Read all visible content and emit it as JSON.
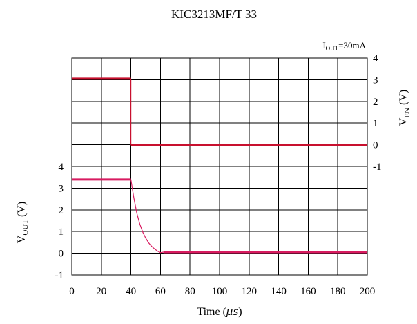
{
  "chart_data": {
    "type": "line",
    "title": "KIC3213MF/T 33",
    "condition": {
      "label": "I",
      "sub": "OUT",
      "value": "=30mA"
    },
    "xlabel": "Time (μs)",
    "xlabel_text": "Time (",
    "xlabel_unit": "μs",
    "xlabel_close": ")",
    "xlim": [
      0,
      200
    ],
    "x_ticks": [
      "0",
      "20",
      "40",
      "60",
      "80",
      "100",
      "120",
      "140",
      "160",
      "180",
      "200"
    ],
    "left_axis": {
      "label": "V",
      "label_sub": "OUT",
      "label_unit": " (V)",
      "ticks": [
        "4",
        "3",
        "2",
        "1",
        "0",
        "-1"
      ]
    },
    "right_axis": {
      "label": "V",
      "label_sub": "EN",
      "label_unit": " (V)",
      "ticks": [
        "4",
        "3",
        "2",
        "1",
        "0",
        "-1"
      ]
    },
    "grid": true,
    "series": [
      {
        "name": "V_EN",
        "axis": "right",
        "color": "#c8102e",
        "x": [
          0,
          40,
          40,
          200
        ],
        "y": [
          3.05,
          3.05,
          0,
          0
        ]
      },
      {
        "name": "V_OUT",
        "axis": "left",
        "color": "#d81b60",
        "x": [
          0,
          40,
          42,
          44,
          46,
          48,
          50,
          52,
          54,
          56,
          58,
          60,
          62,
          200
        ],
        "y": [
          3.4,
          3.4,
          2.55,
          1.85,
          1.35,
          0.98,
          0.7,
          0.48,
          0.32,
          0.2,
          0.1,
          0.03,
          0.05,
          0.05
        ]
      }
    ]
  }
}
